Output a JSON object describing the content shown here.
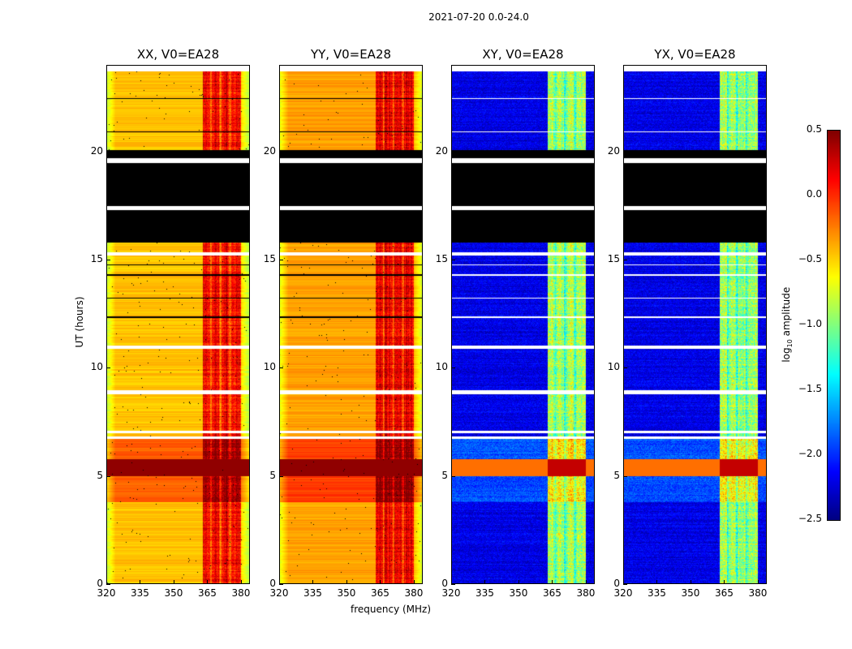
{
  "chart_data": {
    "type": "heatmap",
    "title": "2021-07-20 0.0-24.0",
    "xlabel": "frequency (MHz)",
    "ylabel": "UT (hours)",
    "xlim": [
      320,
      384
    ],
    "ylim": [
      0,
      24
    ],
    "xticks": [
      "320",
      "335",
      "350",
      "365",
      "380"
    ],
    "yticks": [
      "0",
      "5",
      "10",
      "15",
      "20"
    ],
    "colorbar": {
      "label": "log10 amplitude",
      "label_main": "log",
      "label_sub": "10",
      "label_rest": " amplitude",
      "range": [
        -2.5,
        0.5
      ],
      "ticks": [
        "0.5",
        "0.0",
        "−0.5",
        "−1.0",
        "−1.5",
        "−2.0",
        "−2.5"
      ],
      "tick_values": [
        0.5,
        0,
        -0.5,
        -1,
        -1.5,
        -2,
        -2.5
      ],
      "colormap": "jet"
    },
    "panels": [
      {
        "title": "XX, V0=EA28",
        "pol": "parallel",
        "base_level": -0.45,
        "rfi_range_mhz": [
          363,
          380
        ],
        "rfi_level": 0.15
      },
      {
        "title": "YY, V0=EA28",
        "pol": "parallel",
        "base_level": -0.35,
        "rfi_range_mhz": [
          363,
          380
        ],
        "rfi_level": 0.2
      },
      {
        "title": "XY, V0=EA28",
        "pol": "cross",
        "base_level": -2.2,
        "rfi_range_mhz": [
          363,
          380
        ],
        "rfi_level": -0.9
      },
      {
        "title": "YX, V0=EA28",
        "pol": "cross",
        "base_level": -2.2,
        "rfi_range_mhz": [
          363,
          380
        ],
        "rfi_level": -0.9
      }
    ],
    "flagged_hours": [
      [
        15.8,
        17.3
      ],
      [
        17.5,
        19.5
      ],
      [
        19.7,
        20.1
      ]
    ],
    "gap_hours": [
      [
        17.3,
        17.5
      ],
      [
        19.5,
        19.7
      ],
      [
        15.2,
        15.35
      ],
      [
        10.9,
        11.05
      ],
      [
        8.8,
        9.0
      ],
      [
        7.0,
        7.1
      ],
      [
        6.75,
        6.85
      ]
    ],
    "strong_band_hours": [
      5.0,
      5.8
    ],
    "elevated_band_hours": [
      3.8,
      6.8
    ]
  }
}
